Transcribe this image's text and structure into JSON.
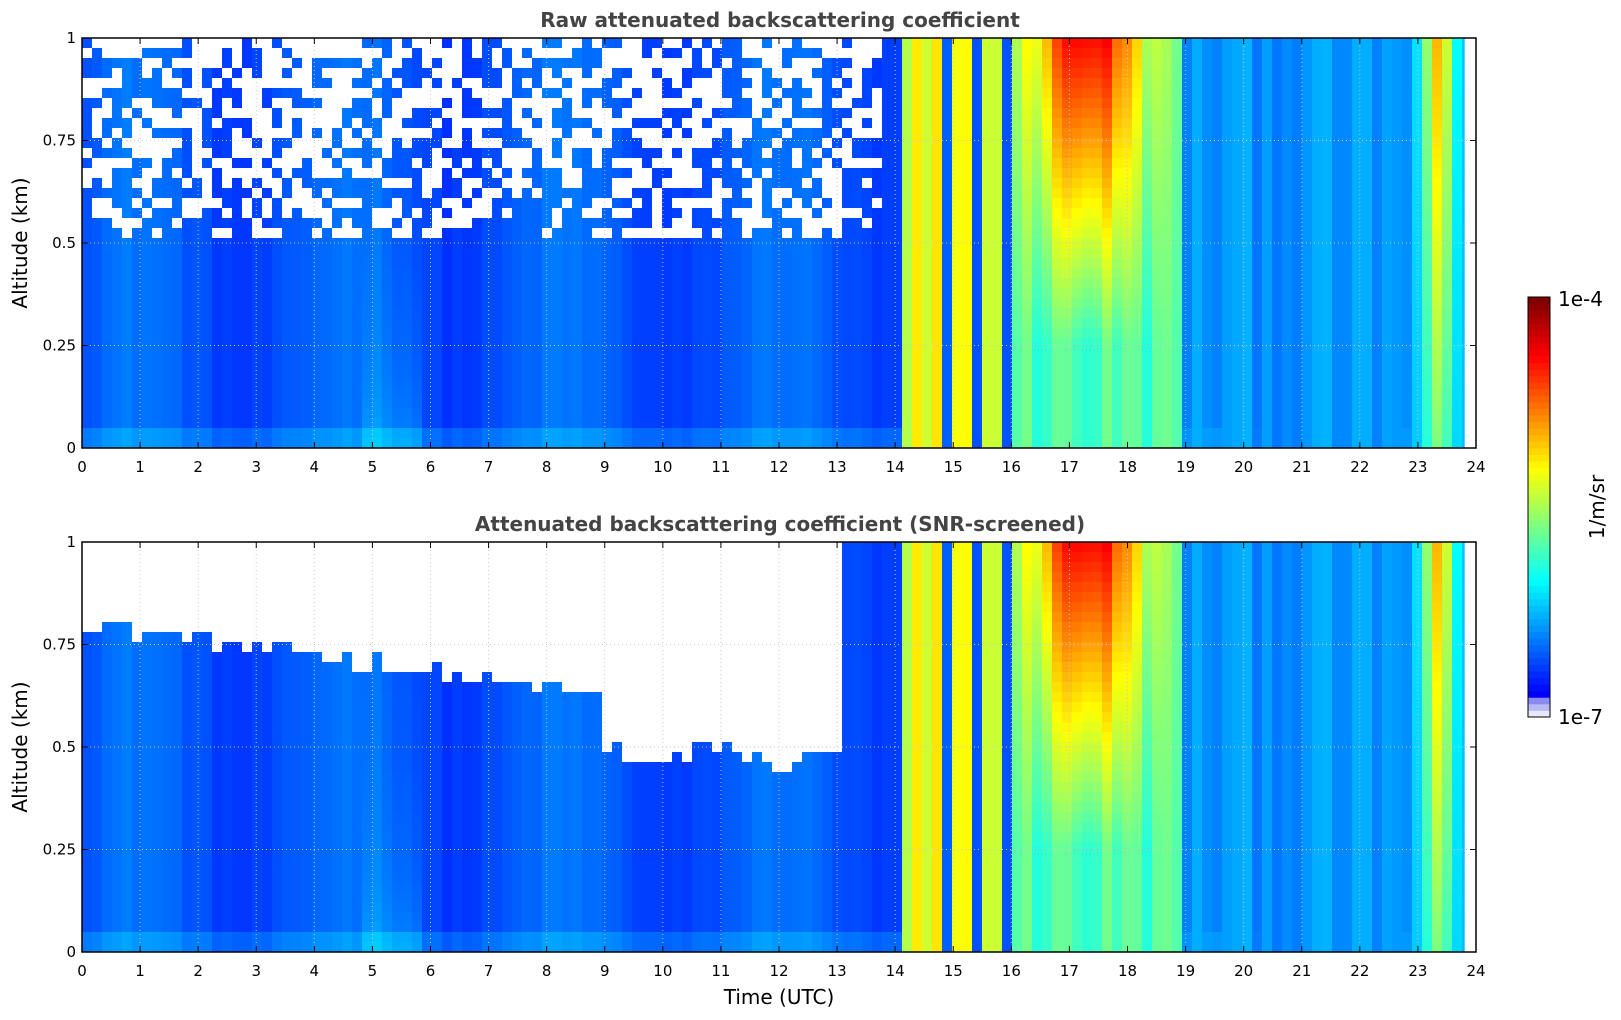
{
  "figure": {
    "colormap": "jet",
    "colors": {
      "clear_air": "#1a2df2",
      "aerosol": "#13b8f0",
      "cloud": "#f2f21a",
      "cloud_core": "#ff9a05",
      "max": "#7f0000",
      "min": "#e8e8fb"
    },
    "grid": true,
    "grid_style": "dotted",
    "colorbar": {
      "label": "1/m/sr",
      "max_label": "1e-4",
      "min_label": "1e-7",
      "scale": "log",
      "range": [
        1e-07,
        0.0001
      ],
      "placement": "right"
    }
  },
  "chart_data": [
    {
      "type": "heatmap",
      "title": "Raw attenuated backscattering coefficient",
      "xlabel": "",
      "ylabel": "Altitude (km)",
      "xlim": [
        0,
        24
      ],
      "ylim": [
        0,
        1
      ],
      "xticks": [
        "0",
        "1",
        "2",
        "3",
        "4",
        "5",
        "6",
        "7",
        "8",
        "9",
        "10",
        "11",
        "12",
        "13",
        "14",
        "15",
        "16",
        "17",
        "18",
        "19",
        "20",
        "21",
        "22",
        "23",
        "24"
      ],
      "yticks": [
        "0",
        "0.25",
        "0.5",
        "0.75",
        "1"
      ],
      "data_end_hour": 23.8,
      "screened": false
    },
    {
      "type": "heatmap",
      "title": "Attenuated backscattering coefficient (SNR-screened)",
      "xlabel": "Time (UTC)",
      "ylabel": "Altitude (km)",
      "xlim": [
        0,
        24
      ],
      "ylim": [
        0,
        1
      ],
      "xticks": [
        "0",
        "1",
        "2",
        "3",
        "4",
        "5",
        "6",
        "7",
        "8",
        "9",
        "10",
        "11",
        "12",
        "13",
        "14",
        "15",
        "16",
        "17",
        "18",
        "19",
        "20",
        "21",
        "22",
        "23",
        "24"
      ],
      "yticks": [
        "0",
        "0.25",
        "0.5",
        "0.75",
        "1"
      ],
      "data_end_hour": 23.8,
      "screened": true
    }
  ]
}
